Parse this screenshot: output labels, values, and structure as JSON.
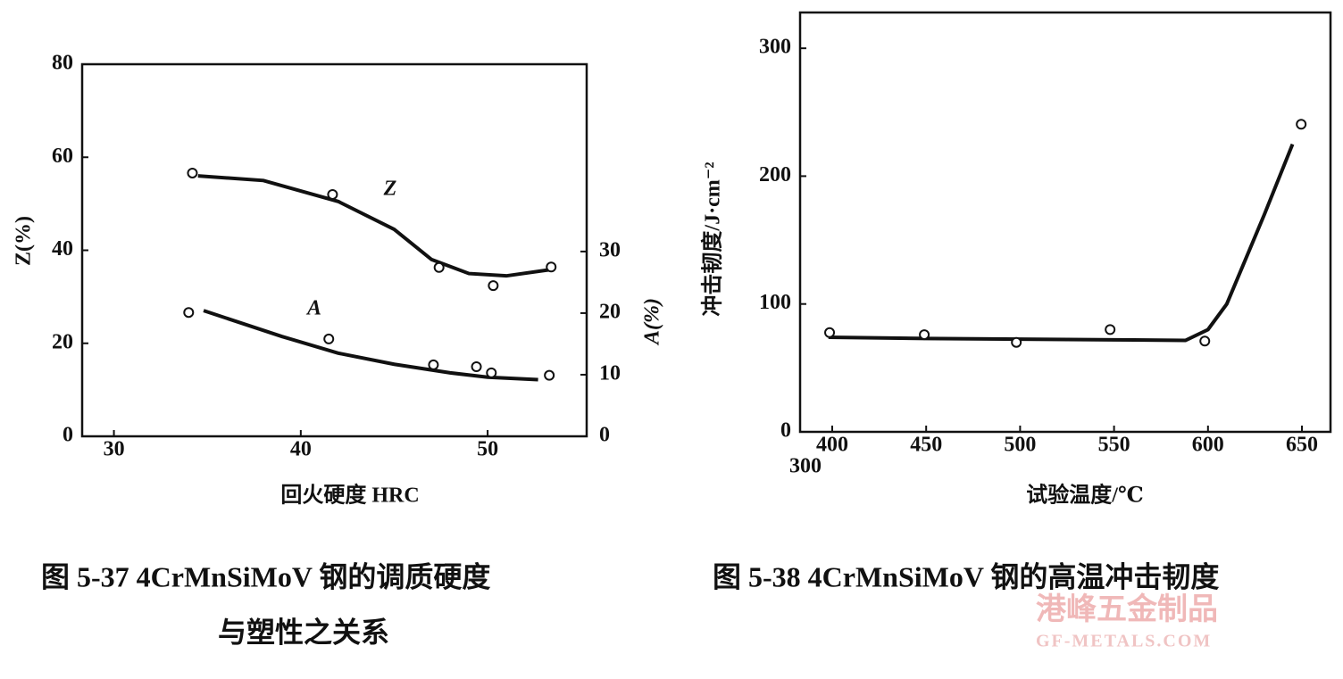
{
  "chart_data": [
    {
      "type": "scatter",
      "xlabel": "回火硬度  HRC",
      "ylabel": "Z(%)",
      "y2label": "A(%)",
      "caption": [
        "图 5-37    4CrMnSiMoV 钢的调质硬度",
        "与塑性之关系"
      ],
      "xlim": [
        28.3,
        55.3
      ],
      "xticks": [
        30,
        40,
        50
      ],
      "ylim": [
        0,
        80
      ],
      "yticks": [
        0,
        20,
        40,
        60,
        80
      ],
      "y2lim": [
        0,
        60.4
      ],
      "y2ticks": [
        0,
        10,
        20,
        30
      ],
      "color": "#111111",
      "series": [
        {
          "name": "Z",
          "x": [
            34.2,
            41.7,
            47.4,
            50.3,
            53.4
          ],
          "values": [
            56.6,
            52,
            36.3,
            32.4,
            36.4
          ],
          "fit_x": [
            34.5,
            38,
            42,
            45,
            47,
            49,
            51,
            53.3
          ],
          "fit_values": [
            56,
            55,
            50.5,
            44.5,
            38,
            35,
            34.5,
            35.8
          ]
        },
        {
          "name": "A",
          "axis": "y2",
          "x": [
            34.0,
            41.5,
            47.1,
            49.4,
            50.2,
            53.3
          ],
          "values": [
            20.1,
            15.8,
            11.6,
            11.3,
            10.3,
            9.9
          ],
          "fit_x": [
            34.8,
            39,
            42,
            45,
            48,
            50,
            52.7
          ],
          "fit_values": [
            20.4,
            16.2,
            13.5,
            11.7,
            10.3,
            9.6,
            9.2
          ]
        }
      ]
    },
    {
      "type": "scatter",
      "xlabel": "试验温度/℃",
      "ylabel": "冲击韧度/J·cm⁻²",
      "caption": [
        "图 5-38    4CrMnSiMoV 钢的高温冲击韧度"
      ],
      "annotation": "300",
      "xlim": [
        382.9,
        665.2
      ],
      "xticks": [
        400,
        450,
        500,
        550,
        600,
        650
      ],
      "ylim": [
        0,
        328
      ],
      "yticks": [
        0,
        100,
        200,
        300
      ],
      "color": "#111111",
      "series": [
        {
          "x": [
            398.6,
            449,
            498,
            547.9,
            598.3,
            649.6
          ],
          "values": [
            77.6,
            76,
            70,
            80,
            71,
            240.6
          ],
          "fit_x": [
            398,
            450,
            500,
            550,
            588,
            600,
            610,
            630,
            645
          ],
          "fit_values": [
            74,
            73,
            72.5,
            72,
            71.5,
            80,
            100,
            170,
            225
          ]
        }
      ]
    }
  ],
  "watermark": {
    "name": "港峰五金制品",
    "url": "GF-METALS.COM"
  }
}
